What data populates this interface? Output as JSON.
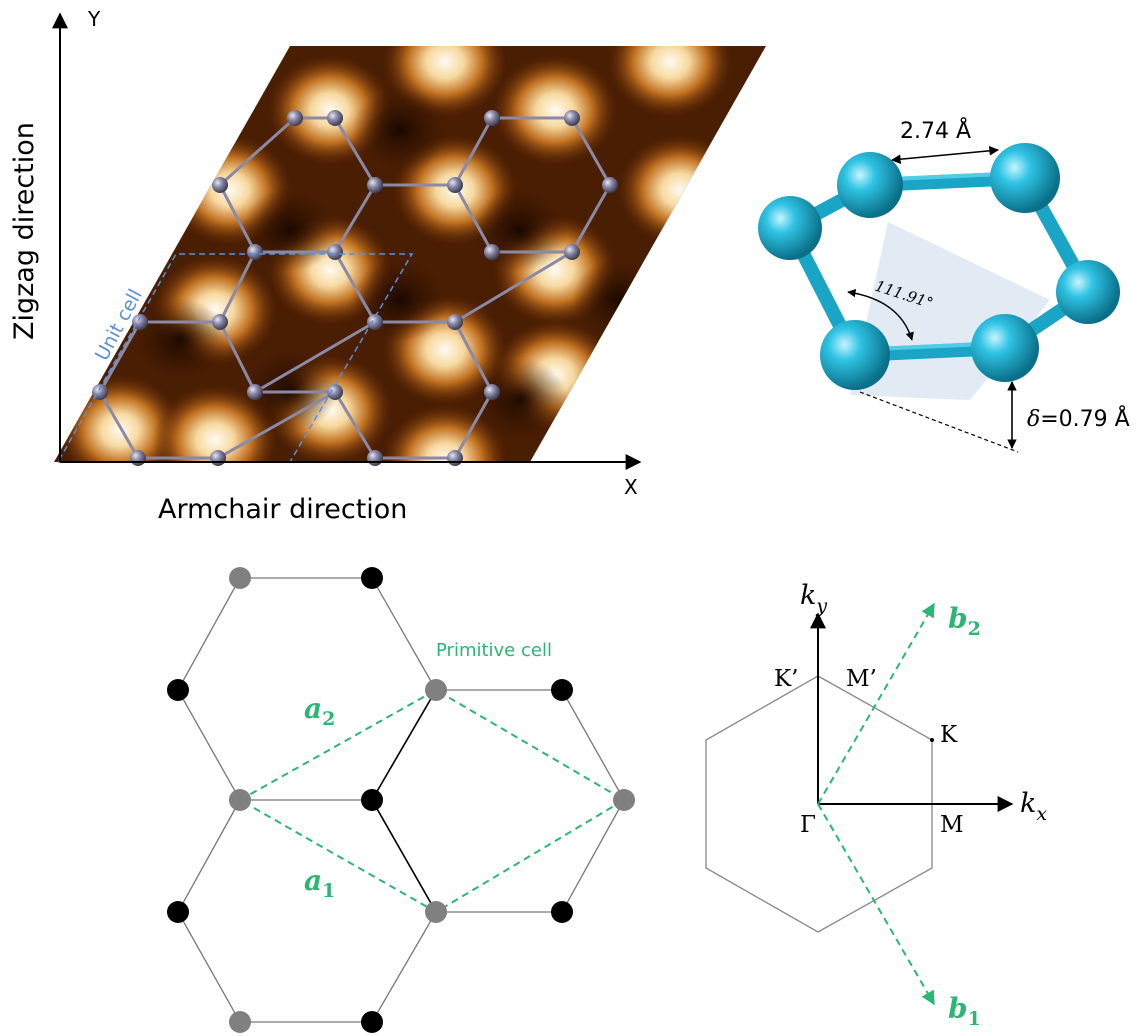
{
  "panel_a": {
    "axis_y_label": "Y",
    "axis_x_label": "X",
    "zigzag_label": "Zigzag direction",
    "armchair_label": "Armchair direction",
    "unit_cell_label": "Unit cell"
  },
  "panel_b": {
    "bond_length_label": "2.74 Å",
    "bond_angle_label": "111.91°",
    "buckling_symbol": "δ",
    "buckling_value": "=0.79 Å"
  },
  "panel_c": {
    "primitive_cell_label": "Primitive cell",
    "a1_symbol": "a",
    "a1_subscript": "1",
    "a2_symbol": "a",
    "a2_subscript": "2"
  },
  "panel_d": {
    "ky_symbol": "k",
    "ky_subscript": "y",
    "kx_symbol": "k",
    "kx_subscript": "x",
    "b1_symbol": "b",
    "b1_subscript": "1",
    "b2_symbol": "b",
    "b2_subscript": "2",
    "point_gamma": "Γ",
    "point_K": "K",
    "point_Kprime": "K’",
    "point_M": "M",
    "point_Mprime": "M’"
  },
  "colors": {
    "atom_gray": "#808080",
    "atom_black": "#000000",
    "primitive_cell_green": "#2bb673",
    "unit_cell_blue": "#5b8fd6",
    "stm_dark": "#2a0f00",
    "stm_bright": "#fff6e6",
    "sphere_cyan": "#1bb6d6"
  }
}
